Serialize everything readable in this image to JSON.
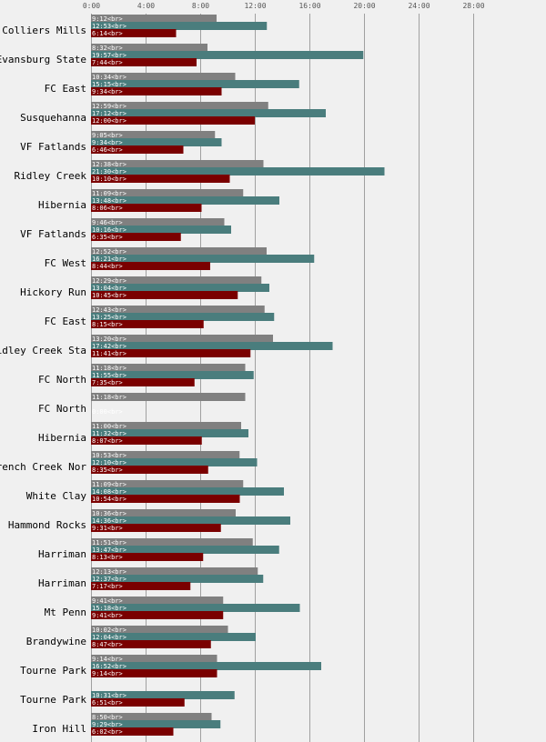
{
  "chart_data": {
    "type": "bar",
    "orientation": "horizontal",
    "x_unit": "minutes",
    "xlim": [
      0,
      1800
    ],
    "x_ticks": [
      "0:00",
      "4:00",
      "8:00",
      "12:00",
      "16:00",
      "20:00",
      "24:00",
      "28:00"
    ],
    "grid": true,
    "legend": "none",
    "colors": [
      "#808080",
      "#4a7d7d",
      "#7a0000"
    ],
    "label_suffix": "<br>",
    "categories": [
      "Colliers Mills",
      "Evansburg State",
      "FC East",
      "Susquehanna",
      "VF Fatlands",
      "Ridley Creek",
      "Hibernia",
      "VF Fatlands",
      "FC West",
      "Hickory Run",
      "FC East",
      "Ridley Creek Sta",
      "FC North",
      "FC North",
      "Hibernia",
      "French Creek Nor",
      "White Clay",
      "Hammond Rocks",
      "Harriman",
      "Harriman",
      "Mt Penn",
      "Brandywine",
      "Tourne Park",
      "Tourne Park",
      "Iron Hill"
    ],
    "series": [
      {
        "labels": [
          "9:12",
          "8:32",
          "10:34",
          "12:59",
          "9:05",
          "12:38",
          "11:09",
          "9:46",
          "12:52",
          "12:29",
          "12:43",
          "13:20",
          "11:18",
          "11:18",
          "11:00",
          "10:53",
          "11:09",
          "10:36",
          "11:51",
          "12:13",
          "9:41",
          "10:02",
          "9:14",
          "",
          "8:50"
        ],
        "values": [
          552,
          512,
          634,
          779,
          545,
          758,
          669,
          586,
          772,
          749,
          763,
          800,
          678,
          678,
          660,
          653,
          669,
          636,
          711,
          733,
          581,
          602,
          554,
          0,
          530
        ]
      },
      {
        "labels": [
          "12:53",
          "19:57",
          "15:15",
          "17:12",
          "9:34",
          "21:30",
          "13:48",
          "10:16",
          "16:21",
          "13:04",
          "13:25",
          "17:42",
          "11:55",
          "",
          "11:32",
          "12:10",
          "14:08",
          "14:36",
          "13:47",
          "12:37",
          "15:18",
          "12:04",
          "16:52",
          "10:31",
          "9:29"
        ],
        "values": [
          773,
          1197,
          915,
          1032,
          574,
          1290,
          828,
          616,
          981,
          784,
          805,
          1062,
          715,
          0,
          692,
          730,
          848,
          876,
          827,
          757,
          918,
          724,
          1012,
          631,
          569
        ]
      },
      {
        "labels": [
          "6:14",
          "7:44",
          "9:34",
          "12:00",
          "6:46",
          "10:10",
          "8:06",
          "6:35",
          "8:44",
          "10:45",
          "8:15",
          "11:41",
          "7:35",
          "0:00",
          "8:07",
          "8:35",
          "10:54",
          "9:31",
          "8:13",
          "7:17",
          "9:41",
          "8:47",
          "9:14",
          "6:51",
          "6:02"
        ],
        "values": [
          374,
          464,
          574,
          720,
          406,
          610,
          486,
          395,
          524,
          645,
          495,
          701,
          455,
          0,
          487,
          515,
          654,
          571,
          493,
          437,
          581,
          527,
          554,
          411,
          362
        ]
      }
    ]
  }
}
